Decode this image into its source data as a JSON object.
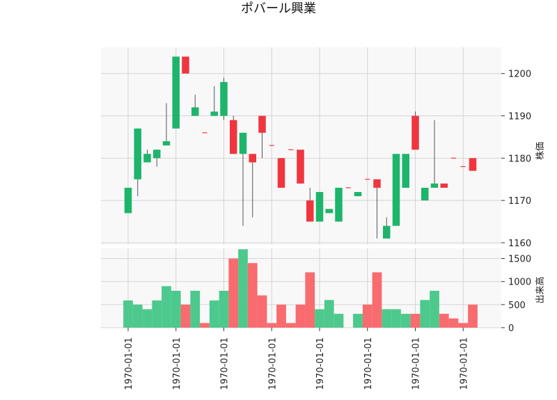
{
  "chart_data": {
    "type": "candlestick",
    "title": "ポバール興業",
    "price_axis_label": "株価",
    "volume_axis_label": "出来高",
    "x_tick_labels": [
      "1970-01-01",
      "1970-01-01",
      "1970-01-01",
      "1970-01-01",
      "1970-01-01",
      "1970-01-01",
      "1970-01-01",
      "1970-01-01"
    ],
    "price_ticks": [
      1160,
      1170,
      1180,
      1190,
      1200
    ],
    "volume_ticks": [
      0,
      500,
      1000,
      1500
    ],
    "price_ylim": [
      1159.5,
      1206.2
    ],
    "volume_ylim": [
      0,
      1720
    ],
    "colors": {
      "up": "#1db56b",
      "down": "#f0353f",
      "up_volume": "#4dc98d",
      "down_volume": "#f86b6f",
      "wick": "#555555",
      "grid": "#d4d4d4",
      "panel_bg": "#f8f8f8"
    },
    "candles": [
      {
        "open": 1167,
        "high": 1173,
        "low": 1167,
        "close": 1173,
        "volume": 590
      },
      {
        "open": 1175,
        "high": 1187,
        "low": 1171,
        "close": 1187,
        "volume": 500
      },
      {
        "open": 1179,
        "high": 1182,
        "low": 1179,
        "close": 1181,
        "volume": 400
      },
      {
        "open": 1180,
        "high": 1182,
        "low": 1178,
        "close": 1182,
        "volume": 590
      },
      {
        "open": 1183,
        "high": 1193,
        "low": 1183,
        "close": 1184,
        "volume": 900
      },
      {
        "open": 1187,
        "high": 1204,
        "low": 1187,
        "close": 1204,
        "volume": 800
      },
      {
        "open": 1204,
        "high": 1204,
        "low": 1200,
        "close": 1200,
        "volume": 500
      },
      {
        "open": 1190,
        "high": 1195,
        "low": 1190,
        "close": 1192,
        "volume": 800
      },
      {
        "open": 1186,
        "high": 1186,
        "low": 1186,
        "close": 1186,
        "volume": 100
      },
      {
        "open": 1190,
        "high": 1197,
        "low": 1190,
        "close": 1191,
        "volume": 590
      },
      {
        "open": 1190,
        "high": 1199,
        "low": 1189,
        "close": 1198,
        "volume": 800
      },
      {
        "open": 1189,
        "high": 1190,
        "low": 1181,
        "close": 1181,
        "volume": 1500
      },
      {
        "open": 1181,
        "high": 1186,
        "low": 1164,
        "close": 1186,
        "volume": 1700
      },
      {
        "open": 1181,
        "high": 1181,
        "low": 1166,
        "close": 1179,
        "volume": 1400
      },
      {
        "open": 1190,
        "high": 1190,
        "low": 1180,
        "close": 1186,
        "volume": 700
      },
      {
        "open": 1183,
        "high": 1183,
        "low": 1183,
        "close": 1183,
        "volume": 100
      },
      {
        "open": 1180,
        "high": 1180,
        "low": 1173,
        "close": 1173,
        "volume": 500
      },
      {
        "open": 1182,
        "high": 1182,
        "low": 1182,
        "close": 1182,
        "volume": 100
      },
      {
        "open": 1182,
        "high": 1182,
        "low": 1174,
        "close": 1174,
        "volume": 500
      },
      {
        "open": 1170,
        "high": 1173,
        "low": 1165,
        "close": 1165,
        "volume": 1200
      },
      {
        "open": 1165,
        "high": 1172,
        "low": 1165,
        "close": 1172,
        "volume": 400
      },
      {
        "open": 1167,
        "high": 1168,
        "low": 1167,
        "close": 1168,
        "volume": 600
      },
      {
        "open": 1165,
        "high": 1173,
        "low": 1165,
        "close": 1173,
        "volume": 300
      },
      {
        "open": 1173,
        "high": 1173,
        "low": 1173,
        "close": 1173,
        "volume": 0
      },
      {
        "open": 1171,
        "high": 1172,
        "low": 1171,
        "close": 1172,
        "volume": 300
      },
      {
        "open": 1175,
        "high": 1175,
        "low": 1175,
        "close": 1175,
        "volume": 500
      },
      {
        "open": 1175,
        "high": 1175,
        "low": 1161,
        "close": 1173,
        "volume": 1200
      },
      {
        "open": 1161,
        "high": 1166,
        "low": 1161,
        "close": 1164,
        "volume": 400
      },
      {
        "open": 1164,
        "high": 1181,
        "low": 1164,
        "close": 1181,
        "volume": 400
      },
      {
        "open": 1173,
        "high": 1181,
        "low": 1173,
        "close": 1181,
        "volume": 300
      },
      {
        "open": 1190,
        "high": 1191,
        "low": 1182,
        "close": 1182,
        "volume": 300
      },
      {
        "open": 1170,
        "high": 1173,
        "low": 1170,
        "close": 1173,
        "volume": 600
      },
      {
        "open": 1173,
        "high": 1189,
        "low": 1173,
        "close": 1174,
        "volume": 800
      },
      {
        "open": 1174,
        "high": 1174,
        "low": 1173,
        "close": 1173,
        "volume": 300
      },
      {
        "open": 1180,
        "high": 1180,
        "low": 1180,
        "close": 1180,
        "volume": 200
      },
      {
        "open": 1178,
        "high": 1178,
        "low": 1178,
        "close": 1178,
        "volume": 100
      },
      {
        "open": 1180,
        "high": 1180,
        "low": 1177,
        "close": 1177,
        "volume": 500
      }
    ]
  }
}
